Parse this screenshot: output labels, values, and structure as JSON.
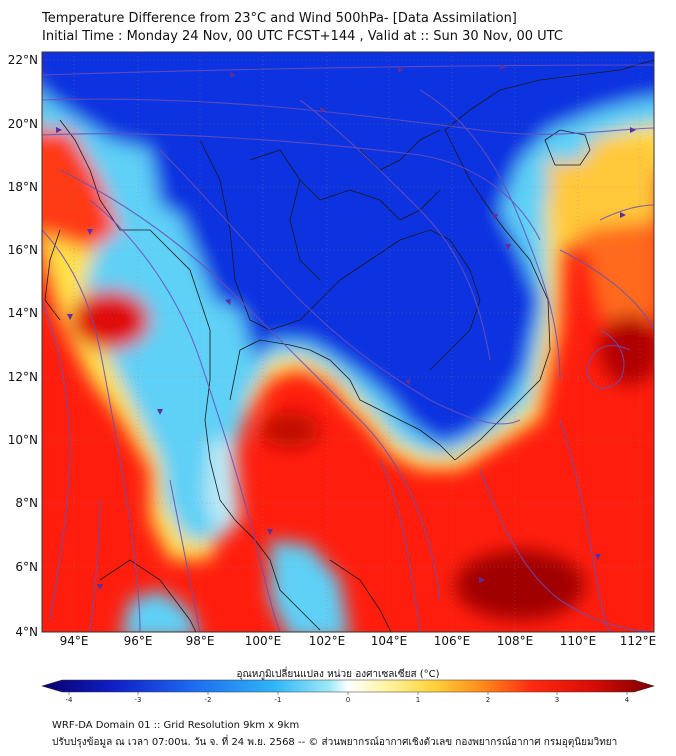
{
  "title": {
    "line1": "Temperature Difference from 23°C and Wind 500hPa- [Data Assimilation]",
    "line2": "Initial Time : Monday 24 Nov, 00 UTC FCST+144 , Valid at ::  Sun 30 Nov, 00 UTC"
  },
  "lat_labels": [
    "22°N",
    "20°N",
    "18°N",
    "16°N",
    "14°N",
    "12°N",
    "10°N",
    "8°N",
    "6°N",
    "4°N"
  ],
  "lon_labels": [
    "94°E",
    "96°E",
    "98°E",
    "100°E",
    "102°E",
    "104°E",
    "106°E",
    "108°E",
    "110°E",
    "112°E"
  ],
  "colorbar": {
    "title": "อุณหภูมิเปลี่ยนแปลง หน่วย องศาเซลเซียส (°C)",
    "ticks": [
      "-4",
      "-3",
      "-2",
      "-1",
      "0",
      "1",
      "2",
      "3",
      "4"
    ],
    "colors": [
      "#08006b",
      "#1020c8",
      "#1e6cf0",
      "#2fb6f7",
      "#9ee8f7",
      "#ffffff",
      "#fff5a6",
      "#ffd23a",
      "#ff8a1a",
      "#ff2a10",
      "#d80c06",
      "#7a0000"
    ]
  },
  "footer": {
    "line1": "WRF-DA Domain 01 :: Grid Resolution 9km x 9km",
    "line2": "ปรับปรุงข้อมูล ณ เวลา 07:00น. วัน จ. ที่ 24 พ.ย. 2568 -- © ส่วนพยากรณ์อากาศเชิงตัวเลข กองพยากรณ์อากาศ กรมอุตุนิยมวิทยา"
  }
}
